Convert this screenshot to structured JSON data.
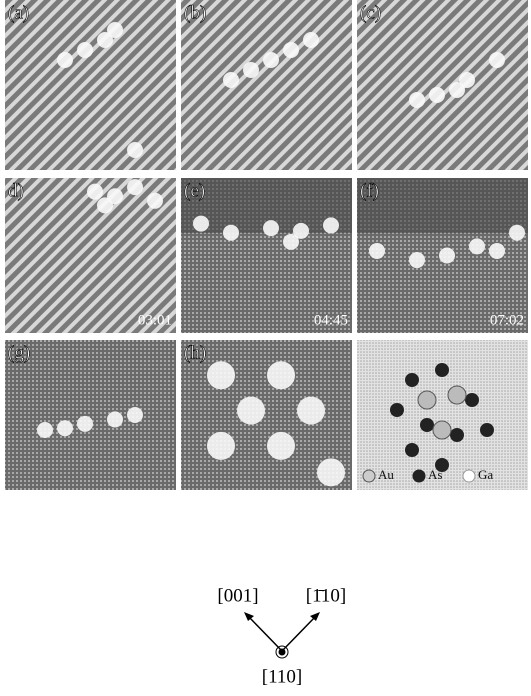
{
  "panels": [
    {
      "label": "(a)"
    },
    {
      "label": "(b)"
    },
    {
      "label": "(c)"
    },
    {
      "label": "d)",
      "time": "03:01"
    },
    {
      "label": "(e)",
      "time": "04:45"
    },
    {
      "label": "(f)",
      "time": "07:02"
    },
    {
      "label": "(g)"
    },
    {
      "label": "(h)"
    }
  ],
  "legend": [
    "Au",
    "As",
    "Ga"
  ],
  "directions": {
    "left": "[001]",
    "right": "[1̄10]",
    "bottom": "[110]"
  }
}
